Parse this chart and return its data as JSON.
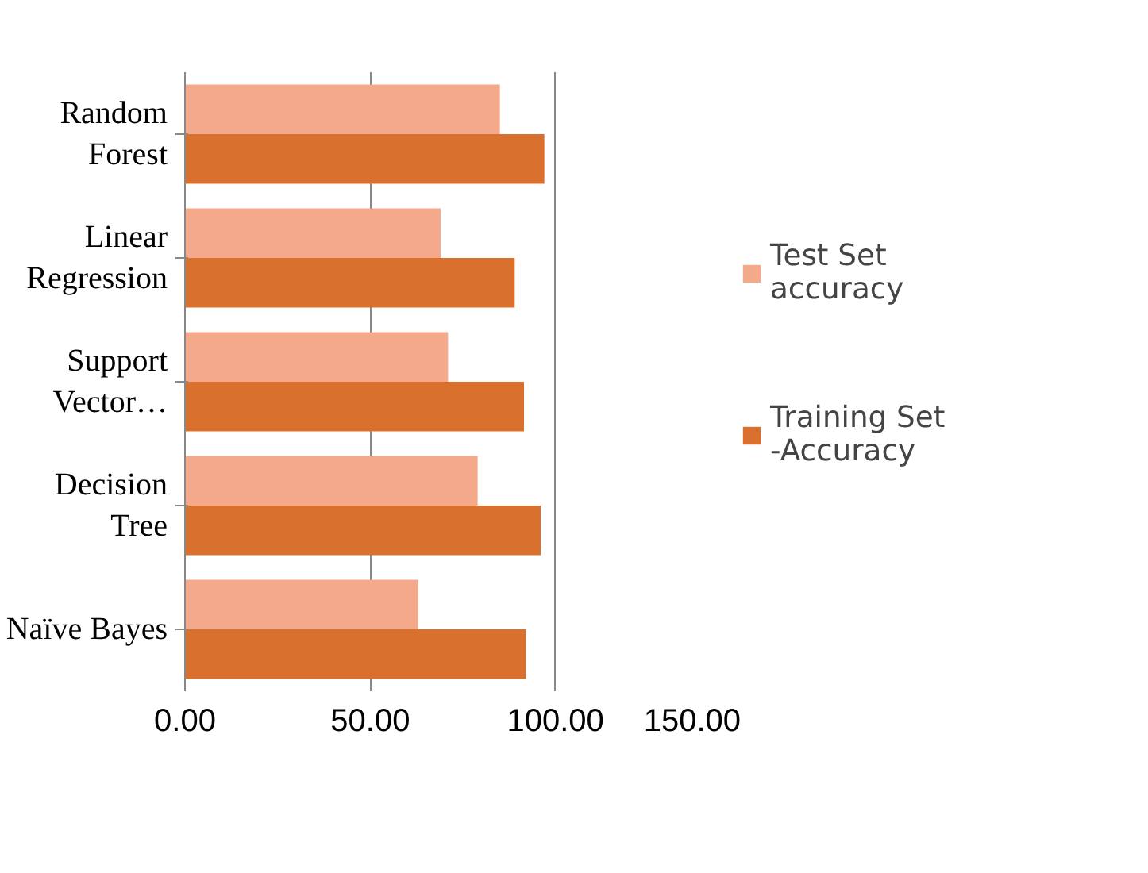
{
  "chart_data": {
    "type": "bar",
    "orientation": "horizontal",
    "categories": [
      "Random Forest",
      "Linear Regression",
      "Support Vector…",
      "Decision Tree",
      "Naïve Bayes"
    ],
    "series": [
      {
        "name": "Test Set accuracy",
        "color": "#f4a98a",
        "values": [
          85,
          69,
          71,
          79,
          63
        ]
      },
      {
        "name": "Training Set -Accuracy",
        "color": "#d9702d",
        "values": [
          97,
          89,
          91.5,
          96,
          92
        ]
      }
    ],
    "xlim": [
      0,
      150
    ],
    "xticks": [
      {
        "value": 0,
        "label": "0.00"
      },
      {
        "value": 50,
        "label": "50.00"
      },
      {
        "value": 100,
        "label": "100.00"
      },
      {
        "value": 150,
        "label": "150.00"
      }
    ],
    "grid": "x",
    "legend": "right"
  }
}
